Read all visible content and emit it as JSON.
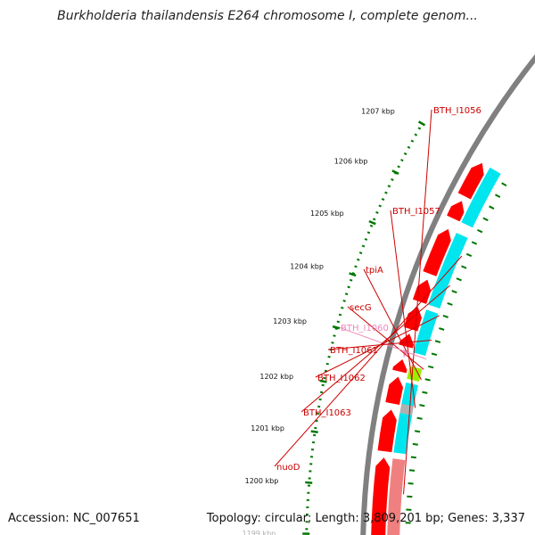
{
  "title": "Burkholderia thailandensis E264 chromosome I, complete genom...",
  "footer": {
    "accession": "Accession: NC_007651",
    "summary": "Topology: circular; Length: 3,809,201 bp; Genes: 3,337"
  },
  "scale": {
    "unit": "kbp",
    "ticks": [
      {
        "text": "1199 kbp",
        "faded": true
      },
      {
        "text": "1200 kbp"
      },
      {
        "text": "1201 kbp"
      },
      {
        "text": "1202 kbp"
      },
      {
        "text": "1203 kbp"
      },
      {
        "text": "1204 kbp"
      },
      {
        "text": "1205 kbp"
      },
      {
        "text": "1206 kbp"
      },
      {
        "text": "1207 kbp"
      }
    ]
  },
  "genes": [
    {
      "name": "BTH_I1056",
      "color": "#cc0000"
    },
    {
      "name": "BTH_I1057",
      "color": "#cc0000"
    },
    {
      "name": "tpiA",
      "color": "#cc0000"
    },
    {
      "name": "secG",
      "color": "#cc0000"
    },
    {
      "name": "BTH_I1060",
      "color": "#ee88bb"
    },
    {
      "name": "BTH_I1061",
      "color": "#cc0000"
    },
    {
      "name": "BTH_I1062",
      "color": "#cc0000"
    },
    {
      "name": "BTH_I1063",
      "color": "#cc0000"
    },
    {
      "name": "nuoD",
      "color": "#cc0000"
    }
  ],
  "colors": {
    "backbone": "#808080",
    "cds": "#ff0000",
    "cds_faded": "#f08080",
    "protein": "#00e5ee",
    "small_rna": "#99ee00",
    "pseudo": "#ee88bb",
    "gap": "#b0b0b0",
    "tick": "#007700"
  }
}
